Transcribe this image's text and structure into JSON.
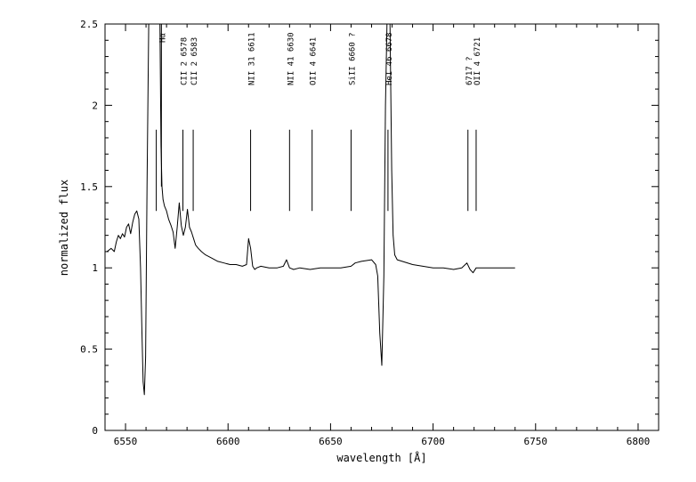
{
  "chart_data": {
    "type": "line",
    "title": "",
    "xlabel": "wavelength [Å]",
    "ylabel": "normalized flux",
    "xlim": [
      6540,
      6810
    ],
    "ylim": [
      0,
      2.5
    ],
    "x_ticks": [
      6550,
      6600,
      6650,
      6700,
      6750,
      6800
    ],
    "x_tick_labels": [
      "6550",
      "6600",
      "6650",
      "6700",
      "6750",
      "6800"
    ],
    "y_ticks": [
      0,
      0.5,
      1,
      1.5,
      2,
      2.5
    ],
    "y_tick_labels": [
      "0",
      "0.5",
      "1",
      "1.5",
      "2",
      "2.5"
    ],
    "grid": false,
    "legend": "none",
    "series": [
      {
        "color": "#000000",
        "x": [
          6541,
          6543,
          6544.5,
          6545.5,
          6546.5,
          6547.5,
          6548.5,
          6549.5,
          6550.5,
          6551.5,
          6552.5,
          6553.5,
          6554.5,
          6555.5,
          6556.5,
          6557.3,
          6558,
          6558.6,
          6559.2,
          6559.8,
          6560.5,
          6561.3,
          6562.2,
          6563.2,
          6564.2,
          6565.2,
          6566,
          6566.8,
          6567.3,
          6567.8,
          6568.3,
          6569,
          6570,
          6571,
          6572.2,
          6573.2,
          6574.2,
          6575.2,
          6576.2,
          6577.2,
          6578.2,
          6579.2,
          6580.2,
          6581.2,
          6582.2,
          6583.2,
          6584.2,
          6585.5,
          6587,
          6589,
          6592,
          6595,
          6598,
          6601,
          6604,
          6607,
          6609,
          6610,
          6611,
          6612,
          6613,
          6614,
          6616,
          6620,
          6624,
          6627,
          6628.5,
          6630,
          6632,
          6635,
          6640,
          6645,
          6650,
          6655,
          6660,
          6662,
          6665,
          6670,
          6672,
          6673,
          6674,
          6675,
          6676,
          6676.8,
          6677.5,
          6678.2,
          6679,
          6679.8,
          6680.5,
          6681.3,
          6682.5,
          6685,
          6690,
          6695,
          6700,
          6705,
          6710,
          6714,
          6716.5,
          6718,
          6719.5,
          6721,
          6723,
          6727,
          6732,
          6737,
          6740
        ],
        "y": [
          1.1,
          1.12,
          1.1,
          1.16,
          1.2,
          1.18,
          1.21,
          1.19,
          1.25,
          1.27,
          1.21,
          1.28,
          1.33,
          1.35,
          1.3,
          1.0,
          0.6,
          0.3,
          0.22,
          0.45,
          1.5,
          2.5,
          2.5,
          2.5,
          2.5,
          2.5,
          2.5,
          2.5,
          1.75,
          1.5,
          1.42,
          1.38,
          1.35,
          1.3,
          1.26,
          1.22,
          1.12,
          1.25,
          1.4,
          1.26,
          1.2,
          1.25,
          1.36,
          1.25,
          1.22,
          1.18,
          1.14,
          1.12,
          1.1,
          1.08,
          1.06,
          1.04,
          1.03,
          1.02,
          1.02,
          1.01,
          1.02,
          1.18,
          1.12,
          1.01,
          0.99,
          1.0,
          1.01,
          1.0,
          1.0,
          1.01,
          1.05,
          1.0,
          0.99,
          1.0,
          0.99,
          1.0,
          1.0,
          1.0,
          1.01,
          1.03,
          1.04,
          1.05,
          1.02,
          0.95,
          0.6,
          0.4,
          0.95,
          2.0,
          2.5,
          2.5,
          2.5,
          1.6,
          1.2,
          1.08,
          1.05,
          1.04,
          1.02,
          1.01,
          1.0,
          1.0,
          0.99,
          1.0,
          1.03,
          0.99,
          0.97,
          1.0,
          1.0,
          1.0,
          1.0,
          1.0,
          1.0
        ]
      }
    ],
    "line_ids": [
      {
        "x": 6567.5,
        "label": "Hα",
        "y_top": 2.5,
        "y_bottom": 1.5
      },
      {
        "x": 6565,
        "label": "",
        "y_top": 1.85,
        "y_bottom": 1.35
      },
      {
        "x": 6578,
        "label": "CII 2 6578",
        "y_top": 1.85,
        "y_bottom": 1.35
      },
      {
        "x": 6583,
        "label": "CII 2 6583",
        "y_top": 1.85,
        "y_bottom": 1.35
      },
      {
        "x": 6611,
        "label": "NII 31 6611",
        "y_top": 1.85,
        "y_bottom": 1.35
      },
      {
        "x": 6630,
        "label": "NII 41 6630",
        "y_top": 1.85,
        "y_bottom": 1.35
      },
      {
        "x": 6641,
        "label": "OII 4 6641",
        "y_top": 1.85,
        "y_bottom": 1.35
      },
      {
        "x": 6660,
        "label": "SiII 6660 ?",
        "y_top": 1.85,
        "y_bottom": 1.35
      },
      {
        "x": 6678,
        "label": "HeI 46 6678",
        "y_top": 1.85,
        "y_bottom": 1.35
      },
      {
        "x": 6717,
        "label": "6717 ?",
        "y_top": 1.85,
        "y_bottom": 1.35
      },
      {
        "x": 6721,
        "label": "OII 4 6721",
        "y_top": 1.85,
        "y_bottom": 1.35
      }
    ]
  }
}
